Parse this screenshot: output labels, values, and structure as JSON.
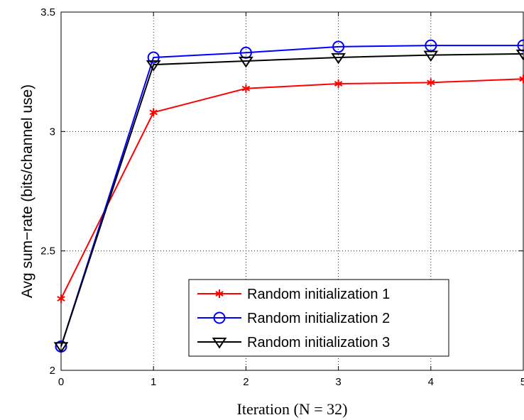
{
  "chart_data": {
    "type": "line",
    "title": "",
    "xlabel": "Iteration (N = 32)",
    "ylabel": "Avg sum−rate (bits/channel use)",
    "x": [
      0,
      1,
      2,
      3,
      4,
      5
    ],
    "xlim": [
      0,
      5
    ],
    "ylim": [
      2,
      3.5
    ],
    "xticks": [
      "0",
      "1",
      "2",
      "3",
      "4",
      "5"
    ],
    "yticks": [
      "2",
      "2.5",
      "3",
      "3.5"
    ],
    "ytick_values": [
      2,
      2.5,
      3,
      3.5
    ],
    "grid": true,
    "legend_position": "bottom-right",
    "series": [
      {
        "name": "Random initialization 1",
        "color": "#ff0000",
        "marker": "asterisk",
        "values": [
          2.3,
          3.08,
          3.18,
          3.2,
          3.205,
          3.22
        ]
      },
      {
        "name": "Random initialization 2",
        "color": "#0000ff",
        "marker": "circle",
        "values": [
          2.1,
          3.31,
          3.33,
          3.355,
          3.36,
          3.36
        ]
      },
      {
        "name": "Random initialization 3",
        "color": "#000000",
        "marker": "triangle-down",
        "values": [
          2.1,
          3.28,
          3.295,
          3.31,
          3.32,
          3.325
        ]
      }
    ]
  }
}
